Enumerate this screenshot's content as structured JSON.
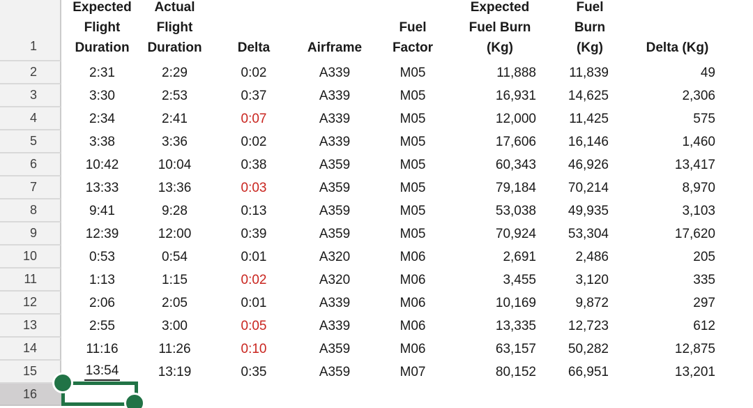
{
  "sheet": {
    "header_row_number": "1",
    "headers": [
      "Expected\nFlight\nDuration",
      "Actual\nFlight\nDuration",
      "Delta",
      "Airframe",
      "Fuel\nFactor",
      "Expected\nFuel Burn\n(Kg)",
      "Actual Fuel\nBurn (Kg)",
      "Delta (Kg)"
    ],
    "rows": [
      {
        "n": "2",
        "cells": [
          "2:31",
          "2:29",
          "0:02",
          "A339",
          "M05",
          "11,888",
          "11,839",
          "49"
        ]
      },
      {
        "n": "3",
        "cells": [
          "3:30",
          "2:53",
          "0:37",
          "A339",
          "M05",
          "16,931",
          "14,625",
          "2,306"
        ]
      },
      {
        "n": "4",
        "cells": [
          "2:34",
          "2:41",
          "0:07",
          "A339",
          "M05",
          "12,000",
          "11,425",
          "575"
        ],
        "delta_negative": true
      },
      {
        "n": "5",
        "cells": [
          "3:38",
          "3:36",
          "0:02",
          "A339",
          "M05",
          "17,606",
          "16,146",
          "1,460"
        ]
      },
      {
        "n": "6",
        "cells": [
          "10:42",
          "10:04",
          "0:38",
          "A359",
          "M05",
          "60,343",
          "46,926",
          "13,417"
        ]
      },
      {
        "n": "7",
        "cells": [
          "13:33",
          "13:36",
          "0:03",
          "A359",
          "M05",
          "79,184",
          "70,214",
          "8,970"
        ],
        "delta_negative": true
      },
      {
        "n": "8",
        "cells": [
          "9:41",
          "9:28",
          "0:13",
          "A359",
          "M05",
          "53,038",
          "49,935",
          "3,103"
        ]
      },
      {
        "n": "9",
        "cells": [
          "12:39",
          "12:00",
          "0:39",
          "A359",
          "M05",
          "70,924",
          "53,304",
          "17,620"
        ]
      },
      {
        "n": "10",
        "cells": [
          "0:53",
          "0:54",
          "0:01",
          "A320",
          "M06",
          "2,691",
          "2,486",
          "205"
        ]
      },
      {
        "n": "11",
        "cells": [
          "1:13",
          "1:15",
          "0:02",
          "A320",
          "M06",
          "3,455",
          "3,120",
          "335"
        ],
        "delta_negative": true
      },
      {
        "n": "12",
        "cells": [
          "2:06",
          "2:05",
          "0:01",
          "A339",
          "M06",
          "10,169",
          "9,872",
          "297"
        ]
      },
      {
        "n": "13",
        "cells": [
          "2:55",
          "3:00",
          "0:05",
          "A339",
          "M06",
          "13,335",
          "12,723",
          "612"
        ],
        "delta_negative": true
      },
      {
        "n": "14",
        "cells": [
          "11:16",
          "11:26",
          "0:10",
          "A359",
          "M06",
          "63,157",
          "50,282",
          "12,875"
        ],
        "delta_negative": true
      },
      {
        "n": "15",
        "cells": [
          "13:54",
          "13:19",
          "0:35",
          "A359",
          "M07",
          "80,152",
          "66,951",
          "13,201"
        ],
        "expected_underlined": true
      }
    ],
    "trailing_row_number": "16",
    "selection": {
      "row_number": "16"
    }
  },
  "colors": {
    "selection_green": "#217346",
    "negative_delta_red": "#c9251f",
    "row_header_bg": "#f2f2f2",
    "row_header_selected_bg": "#d1cfd0"
  }
}
